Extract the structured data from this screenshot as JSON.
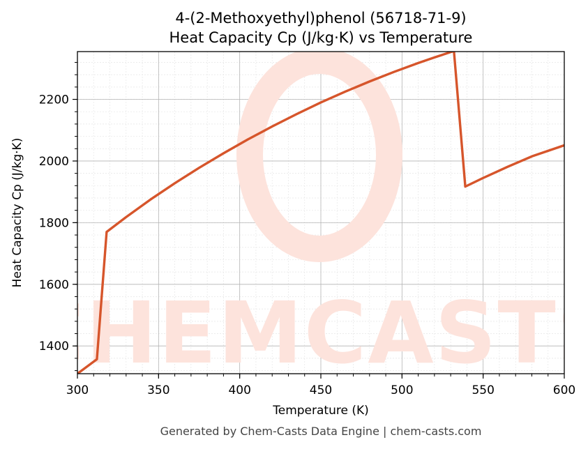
{
  "chart_data": {
    "type": "line",
    "title": "4-(2-Methoxyethyl)phenol (56718-71-9)",
    "subtitle": "Heat Capacity Cp (J/kg·K) vs Temperature",
    "xlabel": "Temperature (K)",
    "ylabel": "Heat Capacity Cp (J/kg·K)",
    "xlim": [
      300,
      600
    ],
    "ylim": [
      1310,
      2355
    ],
    "xticks": [
      300,
      350,
      400,
      450,
      500,
      550,
      600
    ],
    "yticks": [
      1400,
      1600,
      1800,
      2000,
      2200
    ],
    "grid": true,
    "line_color": "#d6552b",
    "series": [
      {
        "x": [
          300,
          312,
          318,
          330,
          345,
          360,
          375,
          390,
          405,
          420,
          435,
          450,
          465,
          480,
          495,
          510,
          520,
          532,
          539,
          550,
          565,
          580,
          600
        ],
        "values": [
          1310,
          1357,
          1770,
          1818,
          1875,
          1928,
          1978,
          2025,
          2070,
          2112,
          2152,
          2190,
          2225,
          2258,
          2289,
          2318,
          2336,
          2357,
          1917,
          1945,
          1981,
          2015,
          2051
        ]
      }
    ]
  },
  "watermark": {
    "text": "CHEMCASTS",
    "color": "#fde3dc"
  },
  "footer": "Generated by Chem-Casts Data Engine | chem-casts.com"
}
